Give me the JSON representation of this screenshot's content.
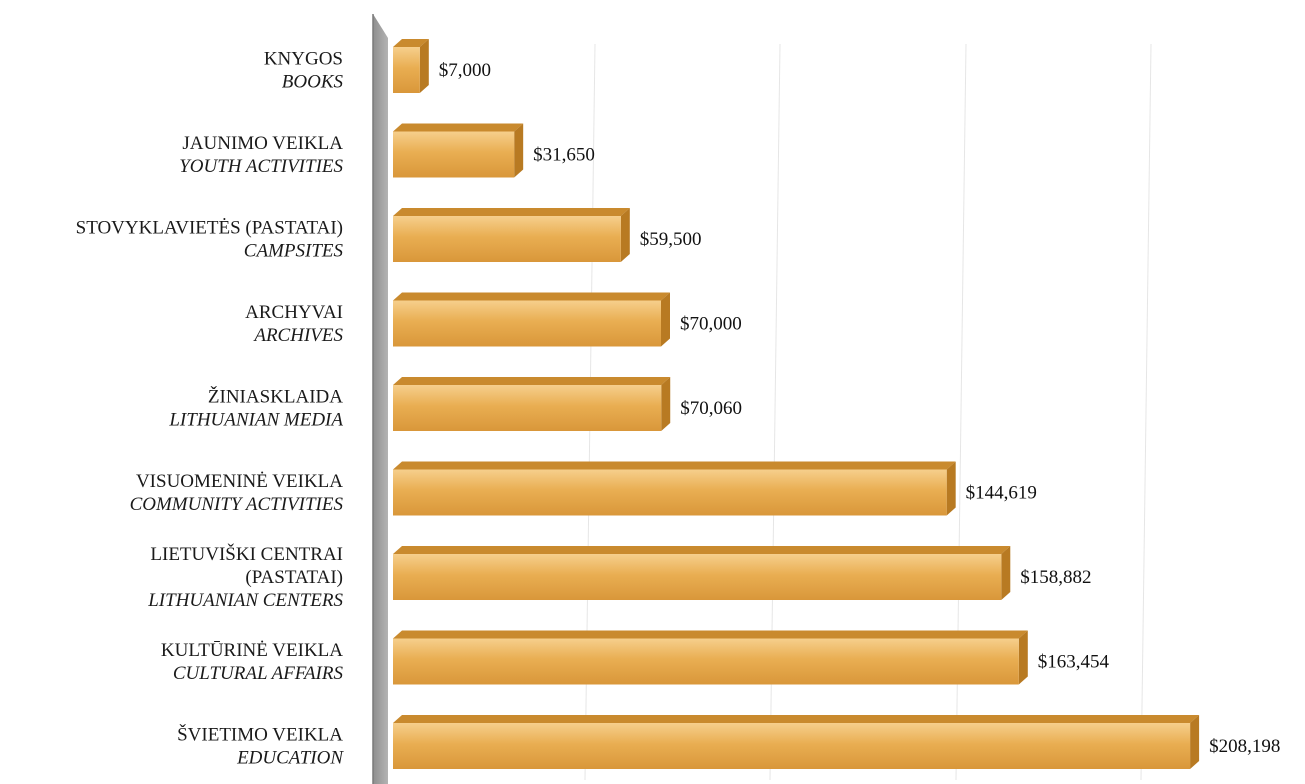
{
  "chart_data": {
    "type": "bar",
    "orientation": "horizontal",
    "style": "3d",
    "grid": true,
    "xlim": [
      0,
      210000
    ],
    "categories": [
      {
        "lines": [
          "KNYGOS"
        ],
        "italic": "BOOKS"
      },
      {
        "lines": [
          "JAUNIMO VEIKLA"
        ],
        "italic": "YOUTH ACTIVITIES"
      },
      {
        "lines": [
          "STOVYKLAVIETĖS (PASTATAI)"
        ],
        "italic": "CAMPSITES"
      },
      {
        "lines": [
          "ARCHYVAI"
        ],
        "italic": "ARCHIVES"
      },
      {
        "lines": [
          "ŽINIASKLAIDA"
        ],
        "italic": "LITHUANIAN MEDIA"
      },
      {
        "lines": [
          "VISUOMENINĖ VEIKLA"
        ],
        "italic": "COMMUNITY ACTIVITIES"
      },
      {
        "lines": [
          "LIETUVIŠKI CENTRAI",
          "(PASTATAI)"
        ],
        "italic": "LITHUANIAN CENTERS"
      },
      {
        "lines": [
          "KULTŪRINĖ VEIKLA"
        ],
        "italic": "CULTURAL AFFAIRS"
      },
      {
        "lines": [
          "ŠVIETIMO VEIKLA"
        ],
        "italic": "EDUCATION"
      }
    ],
    "values": [
      7000,
      31650,
      59500,
      70000,
      70060,
      144619,
      158882,
      163454,
      208198
    ],
    "value_labels": [
      "$7,000",
      "$31,650",
      "$59,500",
      "$70,000",
      "$70,060",
      "$144,619",
      "$158,882",
      "$163,454",
      "$208,198"
    ],
    "colors": {
      "bar_front": "#E7A849",
      "bar_front_light": "#F2C57A",
      "bar_top": "#C98A2E",
      "bar_side": "#B87A22",
      "wall": "#A6A6A6",
      "wall_dark": "#8A8A8A",
      "grid": "#E6E6E6"
    }
  }
}
